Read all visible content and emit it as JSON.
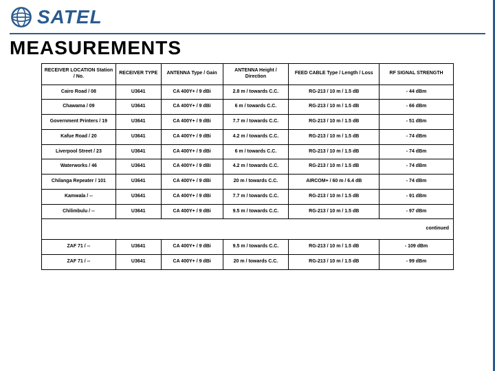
{
  "brand": "SATEL",
  "title": "MEASUREMENTS",
  "colors": {
    "brand_blue": "#2a5b8f",
    "text_black": "#000000",
    "background": "#ffffff"
  },
  "table": {
    "type": "table",
    "columns": [
      "RECEIVER LOCATION Station / No.",
      "RECEIVER TYPE",
      "ANTENNA Type / Gain",
      "ANTENNA Height / Direction",
      "FEED CABLE Type / Length / Loss",
      "RF SIGNAL STRENGTH"
    ],
    "column_widths_pct": [
      18,
      11,
      15,
      16,
      22,
      18
    ],
    "rows": [
      [
        "Cairo Road / 08",
        "U3641",
        "CA 400Y+ / 9 dBi",
        "2.8 m / towards C.C.",
        "RG-213 / 10 m / 1.5 dB",
        "- 44 dBm"
      ],
      [
        "Chawama / 09",
        "U3641",
        "CA 400Y+ / 9 dBi",
        "6 m / towards C.C.",
        "RG-213 / 10 m / 1.5 dB",
        "- 66 dBm"
      ],
      [
        "Government Printers / 19",
        "U3641",
        "CA 400Y+ / 9 dBi",
        "7.7 m / towards C.C.",
        "RG-213 / 10 m / 1.5 dB",
        "- 51 dBm"
      ],
      [
        "Kafue Road / 20",
        "U3641",
        "CA 400Y+ / 9 dBi",
        "4.2 m / towards C.C.",
        "RG-213 / 10 m / 1.5 dB",
        "- 74 dBm"
      ],
      [
        "Liverpool Street / 23",
        "U3641",
        "CA 400Y+ / 9 dBi",
        "6 m / towards C.C.",
        "RG-213 / 10 m / 1.5 dB",
        "- 74 dBm"
      ],
      [
        "Waterworks / 46",
        "U3641",
        "CA 400Y+ / 9 dBi",
        "4.2 m / towards C.C.",
        "RG-213 / 10 m / 1.5 dB",
        "- 74 dBm"
      ],
      [
        "Chilanga Repeater / 101",
        "U3641",
        "CA 400Y+ / 9 dBi",
        "20 m / towards C.C.",
        "AIRCOM+ / 60 m / 6.4 dB",
        "- 74 dBm"
      ],
      [
        "Kamwala / --",
        "U3641",
        "CA 400Y+ / 9 dBi",
        "7.7 m / towards C.C.",
        "RG-213 / 10 m / 1.5 dB",
        "- 91 dBm"
      ],
      [
        "Chilimbulu / --",
        "U3641",
        "CA 400Y+ / 9 dBi",
        "9.5 m / towards C.C.",
        "RG-213 / 10 m / 1.5 dB",
        "- 97 dBm"
      ]
    ],
    "continued_label": "continued",
    "rows_after": [
      [
        "ZAF 71 / --",
        "U3641",
        "CA 400Y+ / 9 dBi",
        "9.5 m / towards C.C.",
        "RG-213 / 10 m / 1.5 dB",
        "- 109 dBm"
      ],
      [
        "ZAF 71 / --",
        "U3641",
        "CA 400Y+ / 9 dBi",
        "20 m / towards C.C.",
        "RG-213 / 10 m / 1.5 dB",
        "- 99 dBm"
      ]
    ],
    "font_size_pt": 7,
    "border_color": "#000000"
  }
}
